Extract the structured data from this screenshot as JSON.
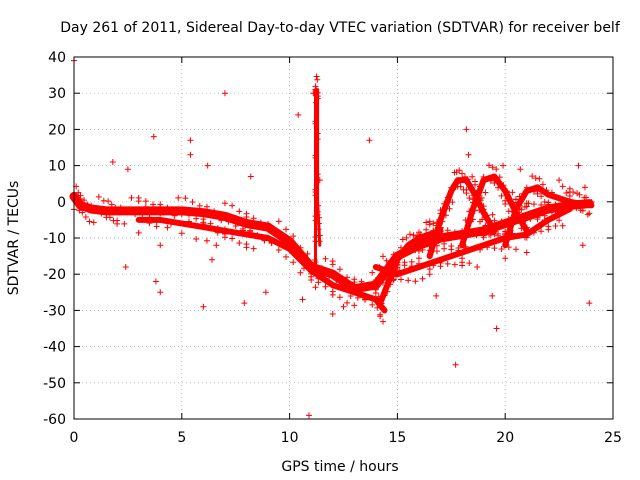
{
  "chart_data": {
    "type": "scatter",
    "title": "Day 261 of 2011, Sidereal Day-to-day VTEC variation (SDTVAR) for receiver belf",
    "xlabel": "GPS time / hours",
    "ylabel": "SDTVAR / TECUs",
    "xlim": [
      0,
      25
    ],
    "ylim": [
      -60,
      40
    ],
    "xticks": [
      0,
      5,
      10,
      15,
      20,
      25
    ],
    "yticks": [
      40,
      30,
      20,
      10,
      0,
      -10,
      -20,
      -30,
      -40,
      -50,
      -60
    ],
    "grid": true,
    "marker": "+",
    "color": "#ff0000",
    "series": [
      {
        "name": "trace-main-band",
        "points": [
          [
            0,
            1.5
          ],
          [
            0.3,
            -1
          ],
          [
            0.8,
            -2
          ],
          [
            1.5,
            -2.5
          ],
          [
            2,
            -2.5
          ],
          [
            3,
            -2.5
          ],
          [
            4,
            -2.5
          ],
          [
            5,
            -2.5
          ],
          [
            6,
            -3
          ],
          [
            7,
            -4
          ],
          [
            8,
            -6
          ],
          [
            9,
            -7
          ],
          [
            10,
            -11
          ],
          [
            11,
            -18
          ],
          [
            12,
            -20
          ],
          [
            13,
            -24
          ],
          [
            14,
            -23
          ],
          [
            15,
            -15
          ],
          [
            16,
            -12
          ],
          [
            17,
            -10
          ],
          [
            18,
            -9
          ],
          [
            19,
            -8
          ],
          [
            20,
            -6
          ],
          [
            21,
            -4
          ],
          [
            22,
            -2
          ],
          [
            23,
            -1
          ],
          [
            23.9,
            -0.5
          ]
        ]
      },
      {
        "name": "trace-lower",
        "points": [
          [
            3,
            -5
          ],
          [
            4,
            -5
          ],
          [
            6,
            -7
          ],
          [
            7,
            -8
          ],
          [
            8,
            -9
          ],
          [
            9,
            -10
          ],
          [
            10,
            -13
          ],
          [
            11,
            -19
          ],
          [
            12,
            -23
          ],
          [
            13,
            -25
          ],
          [
            14,
            -27
          ],
          [
            14.4,
            -30
          ]
        ]
      },
      {
        "name": "trace-arc-1",
        "points": [
          [
            14.2,
            -28
          ],
          [
            14.6,
            -22
          ],
          [
            15,
            -16
          ],
          [
            15.5,
            -12
          ],
          [
            16,
            -10
          ],
          [
            16.5,
            -9
          ],
          [
            17,
            -8
          ]
        ]
      },
      {
        "name": "trace-arc-2",
        "points": [
          [
            16.5,
            -15
          ],
          [
            17,
            -5
          ],
          [
            17.5,
            3
          ],
          [
            17.8,
            6
          ],
          [
            18.2,
            6
          ],
          [
            18.6,
            2
          ],
          [
            19,
            -3
          ],
          [
            19.5,
            -8
          ]
        ]
      },
      {
        "name": "trace-arc-3",
        "points": [
          [
            18,
            -12
          ],
          [
            18.5,
            -2
          ],
          [
            19,
            6
          ],
          [
            19.5,
            7
          ],
          [
            20,
            3
          ],
          [
            20.5,
            -3
          ],
          [
            21,
            -8
          ]
        ]
      },
      {
        "name": "trace-arc-4",
        "points": [
          [
            20,
            -12
          ],
          [
            20.5,
            -2
          ],
          [
            21,
            3
          ],
          [
            21.5,
            4
          ],
          [
            22,
            2
          ],
          [
            23,
            0
          ],
          [
            24,
            -1
          ]
        ]
      },
      {
        "name": "trace-spike",
        "points": [
          [
            11.2,
            -20
          ],
          [
            11.2,
            0
          ],
          [
            11.2,
            31
          ],
          [
            11.3,
            31
          ],
          [
            11.3,
            0
          ],
          [
            11.4,
            -12
          ]
        ]
      },
      {
        "name": "trace-low-tail",
        "points": [
          [
            14,
            -18
          ],
          [
            15,
            -20
          ],
          [
            16,
            -18
          ],
          [
            17,
            -16
          ],
          [
            18,
            -14
          ],
          [
            19,
            -12
          ],
          [
            20,
            -10
          ],
          [
            21,
            -9
          ],
          [
            22,
            -5
          ],
          [
            23,
            -2
          ]
        ]
      },
      {
        "name": "outliers",
        "points": [
          [
            0,
            39
          ],
          [
            1.8,
            11
          ],
          [
            2.4,
            -18
          ],
          [
            2.5,
            9
          ],
          [
            3.7,
            18
          ],
          [
            3.8,
            -22
          ],
          [
            4,
            -25
          ],
          [
            4,
            -12
          ],
          [
            5.4,
            17
          ],
          [
            5.4,
            13
          ],
          [
            6,
            -29
          ],
          [
            6.2,
            10
          ],
          [
            6.6,
            -12
          ],
          [
            6.4,
            -16
          ],
          [
            7,
            30
          ],
          [
            7.9,
            -28
          ],
          [
            8.2,
            7
          ],
          [
            8.9,
            -25
          ],
          [
            10.4,
            24
          ],
          [
            10.6,
            -27
          ],
          [
            10.9,
            -59
          ],
          [
            11.1,
            30
          ],
          [
            11.4,
            6
          ],
          [
            12,
            -31
          ],
          [
            12.5,
            -29
          ],
          [
            13.7,
            17
          ],
          [
            14.4,
            -19
          ],
          [
            16.5,
            -20
          ],
          [
            16.8,
            -26
          ],
          [
            17.7,
            -45
          ],
          [
            18.2,
            20
          ],
          [
            18.3,
            13
          ],
          [
            18.7,
            -18
          ],
          [
            19.4,
            -26
          ],
          [
            19.6,
            -35
          ],
          [
            19.9,
            10
          ],
          [
            20.7,
            9
          ],
          [
            21,
            -14
          ],
          [
            21.8,
            -2
          ],
          [
            22.5,
            6
          ],
          [
            23.4,
            10
          ],
          [
            23.6,
            -12
          ],
          [
            23.9,
            -28
          ],
          [
            23.7,
            4
          ]
        ]
      }
    ]
  }
}
